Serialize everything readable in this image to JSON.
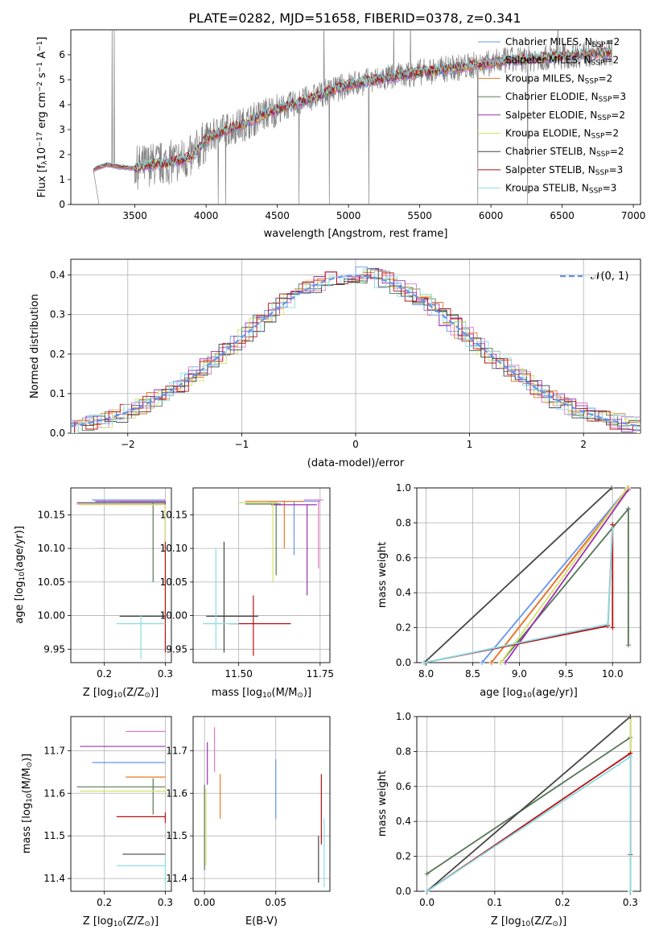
{
  "figure_title": "PLATE=0282, MJD=51658, FIBERID=0378, z=0.341",
  "colors": [
    "#6495ed",
    "#e377c2",
    "#e87722",
    "#557755",
    "#9b30b0",
    "#d4e26a",
    "#444444",
    "#b80f0f",
    "#88dde6"
  ],
  "chart_data": [
    {
      "id": "spectrum",
      "type": "line",
      "title": "PLATE=0282, MJD=51658, FIBERID=0378, z=0.341",
      "xlabel": "wavelength [Angstrom, rest frame]",
      "ylabel": "Flux [f",
      "ylabel_sub": "λ",
      "ylabel_rest": "10",
      "ylabel_exp": "−17",
      "ylabel_tail": " erg cm",
      "ylabel_exp2": "−2",
      "ylabel_tail2": " s",
      "ylabel_exp3": "−1",
      "ylabel_tail3": " A",
      "ylabel_exp4": "−1",
      "ylabel_end": "]",
      "xlim": [
        3050,
        7050
      ],
      "ylim": [
        0,
        7
      ],
      "xticks": [
        3500,
        4000,
        4500,
        5000,
        5500,
        6000,
        6500,
        7000
      ],
      "yticks": [
        0,
        1,
        2,
        3,
        4,
        5,
        6
      ],
      "legend_position": "top-right",
      "data_color": "#808080",
      "model_envelope": {
        "x": [
          3210,
          3300,
          3400,
          3500,
          3600,
          3700,
          3800,
          3900,
          4000,
          4100,
          4200,
          4300,
          4400,
          4500,
          4600,
          4700,
          4800,
          4900,
          5000,
          5100,
          5200,
          5300,
          5400,
          5500,
          5600,
          5700,
          5800,
          5900,
          6000,
          6100,
          6200,
          6300,
          6400,
          6500,
          6600,
          6700,
          6850
        ],
        "y": [
          1.4,
          1.6,
          1.5,
          1.45,
          1.6,
          1.65,
          1.75,
          1.9,
          2.6,
          2.9,
          3.1,
          3.3,
          3.6,
          3.8,
          4.0,
          4.2,
          4.4,
          4.6,
          4.8,
          4.9,
          5.0,
          5.1,
          5.2,
          5.3,
          5.35,
          5.45,
          5.5,
          5.6,
          5.65,
          5.75,
          5.8,
          5.85,
          5.9,
          5.95,
          6.0,
          6.05,
          6.1
        ]
      },
      "series": [
        {
          "name": "Chabrier MILES, N",
          "sub": "SSP",
          "tail": "=2"
        },
        {
          "name": "Salpeter MILES, N",
          "sub": "SSP",
          "tail": "=2"
        },
        {
          "name": "Kroupa MILES, N",
          "sub": "SSP",
          "tail": "=2"
        },
        {
          "name": "Chabrier ELODIE, N",
          "sub": "SSP",
          "tail": "=3"
        },
        {
          "name": "Salpeter ELODIE, N",
          "sub": "SSP",
          "tail": "=2"
        },
        {
          "name": "Kroupa ELODIE, N",
          "sub": "SSP",
          "tail": "=2"
        },
        {
          "name": "Chabrier STELIB, N",
          "sub": "SSP",
          "tail": "=2"
        },
        {
          "name": "Salpeter STELIB, N",
          "sub": "SSP",
          "tail": "=3"
        },
        {
          "name": "Kroupa STELIB, N",
          "sub": "SSP",
          "tail": "=3"
        }
      ]
    },
    {
      "id": "residuals",
      "type": "histogram",
      "xlabel": "(data-model)/error",
      "ylabel": "Normed distribution",
      "xlim": [
        -2.5,
        2.5
      ],
      "ylim": [
        0,
        0.44
      ],
      "xticks": [
        -2,
        -1,
        0,
        1,
        2
      ],
      "yticks": [
        0.0,
        0.1,
        0.2,
        0.3,
        0.4
      ],
      "grid": true,
      "legend_label": "𝒩(0, 1)",
      "legend_position": "top-right",
      "reference_color": "#6495ed",
      "bin_width": 0.1
    },
    {
      "id": "age-vs-Z",
      "type": "errorbar",
      "xlabel": "Z [log",
      "xlabel_sub": "10",
      "xlabel_tail": "(Z/Z",
      "xlabel_sub2": "⊙",
      "xlabel_end": ")]",
      "ylabel": "age  [log",
      "ylabel_sub": "10",
      "ylabel_tail": "(age/yr)]",
      "xlim": [
        0.145,
        0.31
      ],
      "ylim": [
        9.93,
        10.19
      ],
      "xticks": [
        0.2,
        0.3
      ],
      "yticks": [
        9.95,
        10.0,
        10.05,
        10.1,
        10.15
      ],
      "points": [
        {
          "x": 0.3,
          "y": 10.172,
          "xerr": [
            0.18,
            0.3
          ],
          "yerr": [
            10.172,
            10.172
          ]
        },
        {
          "x": 0.3,
          "y": 10.166,
          "xerr": [
            0.155,
            0.3
          ],
          "yerr": [
            10.166,
            10.166
          ]
        },
        {
          "x": 0.3,
          "y": 10.17,
          "xerr": [
            0.225,
            0.3
          ],
          "yerr": [
            10.17,
            10.17
          ]
        },
        {
          "x": 0.28,
          "y": 10.168,
          "xerr": [
            0.155,
            0.3
          ],
          "yerr": [
            10.05,
            10.168
          ]
        },
        {
          "x": 0.3,
          "y": 10.17,
          "xerr": [
            0.185,
            0.3
          ],
          "yerr": [
            10.11,
            10.17
          ]
        },
        {
          "x": 0.3,
          "y": 10.165,
          "xerr": [
            0.16,
            0.3
          ],
          "yerr": [
            10.0,
            10.165
          ]
        },
        {
          "x": 0.265,
          "y": 9.999,
          "xerr": [
            0.225,
            0.3
          ],
          "yerr": [
            9.999,
            9.999
          ]
        },
        {
          "x": 0.3,
          "y": 10.1,
          "xerr": [
            0.3,
            0.3
          ],
          "yerr": [
            9.945,
            10.11
          ]
        },
        {
          "x": 0.26,
          "y": 9.988,
          "xerr": [
            0.22,
            0.3
          ],
          "yerr": [
            9.935,
            10.0
          ]
        }
      ]
    },
    {
      "id": "age-vs-mass",
      "type": "errorbar",
      "xlabel": "mass [log",
      "xlabel_sub": "10",
      "xlabel_tail": "(M/M",
      "xlabel_sub2": "⊙",
      "xlabel_end": ")]",
      "xlim": [
        11.36,
        11.78
      ],
      "ylim": [
        9.93,
        10.19
      ],
      "xticks": [
        11.5,
        11.75
      ],
      "yticks": [
        9.95,
        10.0,
        10.05,
        10.1,
        10.15
      ],
      "points": [
        {
          "x": 11.67,
          "y": 10.17,
          "xerr": [
            11.59,
            11.75
          ],
          "yerr": [
            10.09,
            10.17
          ]
        },
        {
          "x": 11.745,
          "y": 10.172,
          "xerr": [
            11.7,
            11.76
          ],
          "yerr": [
            10.07,
            10.172
          ]
        },
        {
          "x": 11.64,
          "y": 10.17,
          "xerr": [
            11.52,
            11.7
          ],
          "yerr": [
            10.1,
            10.17
          ]
        },
        {
          "x": 11.615,
          "y": 10.166,
          "xerr": [
            11.52,
            11.63
          ],
          "yerr": [
            10.06,
            10.166
          ]
        },
        {
          "x": 11.71,
          "y": 10.165,
          "xerr": [
            11.6,
            11.74
          ],
          "yerr": [
            10.03,
            10.165
          ]
        },
        {
          "x": 11.605,
          "y": 10.168,
          "xerr": [
            11.5,
            11.62
          ],
          "yerr": [
            10.05,
            10.168
          ]
        },
        {
          "x": 11.455,
          "y": 9.999,
          "xerr": [
            11.4,
            11.56
          ],
          "yerr": [
            9.945,
            10.11
          ]
        },
        {
          "x": 11.545,
          "y": 9.988,
          "xerr": [
            11.47,
            11.66
          ],
          "yerr": [
            9.94,
            10.03
          ]
        },
        {
          "x": 11.43,
          "y": 9.988,
          "xerr": [
            11.39,
            11.5
          ],
          "yerr": [
            9.95,
            10.1
          ]
        }
      ]
    },
    {
      "id": "massweight-vs-age",
      "type": "line",
      "xlabel": "age  [log",
      "xlabel_sub": "10",
      "xlabel_tail": "(age/yr)]",
      "ylabel": "mass weight",
      "xlim": [
        7.9,
        10.3
      ],
      "ylim": [
        0,
        1
      ],
      "xticks": [
        8.0,
        8.5,
        9.0,
        9.5,
        10.0
      ],
      "yticks": [
        0.0,
        0.2,
        0.4,
        0.6,
        0.8,
        1.0
      ],
      "grid": true,
      "series": [
        {
          "x": [
            8.6,
            10.15
          ],
          "y": [
            0.0,
            0.99
          ]
        },
        {
          "x": [
            8.7,
            10.16
          ],
          "y": [
            0.0,
            0.99
          ]
        },
        {
          "x": [
            8.7,
            10.17
          ],
          "y": [
            0.0,
            1.0
          ]
        },
        {
          "x": [
            8.8,
            10.17,
            10.17
          ],
          "y": [
            0.0,
            0.88,
            0.1
          ]
        },
        {
          "x": [
            8.85,
            10.17
          ],
          "y": [
            0.0,
            0.99
          ]
        },
        {
          "x": [
            8.8,
            10.16
          ],
          "y": [
            0.0,
            1.0
          ]
        },
        {
          "x": [
            7.98,
            9.99
          ],
          "y": [
            0.0,
            1.0
          ]
        },
        {
          "x": [
            7.98,
            9.95,
            10.0,
            10.0
          ],
          "y": [
            0.0,
            0.21,
            0.79,
            0.2
          ]
        },
        {
          "x": [
            7.98,
            9.95,
            10.0
          ],
          "y": [
            0.0,
            0.22,
            0.77
          ]
        }
      ]
    },
    {
      "id": "mass-vs-Z",
      "type": "errorbar",
      "ylabel": "mass [log",
      "ylabel_sub": "10",
      "ylabel_tail": "(M/M",
      "ylabel_sub2": "⊙",
      "ylabel_end": ")]",
      "xlabel": "Z [log",
      "xlabel_sub": "10",
      "xlabel_tail": "(Z/Z",
      "xlabel_sub2": "⊙",
      "xlabel_end": ")]",
      "xlim": [
        0.145,
        0.31
      ],
      "ylim": [
        11.37,
        11.78
      ],
      "xticks": [
        0.2,
        0.3
      ],
      "yticks": [
        11.4,
        11.5,
        11.6,
        11.7
      ],
      "points": [
        {
          "x": 0.3,
          "y": 11.672,
          "xerr": [
            0.18,
            0.3
          ],
          "yerr": [
            11.672,
            11.672
          ]
        },
        {
          "x": 0.3,
          "y": 11.745,
          "xerr": [
            0.235,
            0.3
          ],
          "yerr": [
            11.745,
            11.745
          ]
        },
        {
          "x": 0.3,
          "y": 11.638,
          "xerr": [
            0.235,
            0.3
          ],
          "yerr": [
            11.638,
            11.638
          ]
        },
        {
          "x": 0.28,
          "y": 11.615,
          "xerr": [
            0.155,
            0.3
          ],
          "yerr": [
            11.55,
            11.635
          ]
        },
        {
          "x": 0.3,
          "y": 11.71,
          "xerr": [
            0.16,
            0.3
          ],
          "yerr": [
            11.71,
            11.71
          ]
        },
        {
          "x": 0.3,
          "y": 11.605,
          "xerr": [
            0.16,
            0.3
          ],
          "yerr": [
            11.6,
            11.61
          ]
        },
        {
          "x": 0.28,
          "y": 11.457,
          "xerr": [
            0.23,
            0.3
          ],
          "yerr": [
            11.457,
            11.457
          ]
        },
        {
          "x": 0.3,
          "y": 11.545,
          "xerr": [
            0.22,
            0.3
          ],
          "yerr": [
            11.53,
            11.555
          ]
        },
        {
          "x": 0.3,
          "y": 11.43,
          "xerr": [
            0.22,
            0.3
          ],
          "yerr": [
            11.38,
            11.45
          ]
        }
      ]
    },
    {
      "id": "mass-vs-EBV",
      "type": "errorbar",
      "xlabel": "E(B-V)",
      "xlim": [
        -0.008,
        0.088
      ],
      "ylim": [
        11.37,
        11.78
      ],
      "xticks": [
        0.0,
        0.05
      ],
      "yticks": [
        11.4,
        11.5,
        11.6,
        11.7
      ],
      "points": [
        {
          "x": 0.05,
          "y": 11.61,
          "yerr": [
            11.54,
            11.68
          ]
        },
        {
          "x": 0.007,
          "y": 11.7,
          "yerr": [
            11.65,
            11.755
          ]
        },
        {
          "x": 0.011,
          "y": 11.6,
          "yerr": [
            11.54,
            11.645
          ]
        },
        {
          "x": 0.0,
          "y": 11.62,
          "yerr": [
            11.42,
            11.62
          ]
        },
        {
          "x": 0.002,
          "y": 11.67,
          "yerr": [
            11.62,
            11.72
          ]
        },
        {
          "x": 0.001,
          "y": 11.52,
          "yerr": [
            11.43,
            11.61
          ]
        },
        {
          "x": 0.08,
          "y": 11.45,
          "yerr": [
            11.39,
            11.5
          ]
        },
        {
          "x": 0.082,
          "y": 11.58,
          "yerr": [
            11.48,
            11.645
          ]
        },
        {
          "x": 0.084,
          "y": 11.46,
          "yerr": [
            11.38,
            11.54
          ]
        }
      ]
    },
    {
      "id": "massweight-vs-Z",
      "type": "line",
      "xlabel": "Z [log",
      "xlabel_sub": "10",
      "xlabel_tail": "(Z/Z",
      "xlabel_sub2": "⊙",
      "xlabel_end": ")]",
      "ylabel": "mass weight",
      "xlim": [
        -0.015,
        0.315
      ],
      "ylim": [
        0,
        1
      ],
      "xticks": [
        0.0,
        0.1,
        0.2,
        0.3
      ],
      "yticks": [
        0.0,
        0.2,
        0.4,
        0.6,
        0.8,
        1.0
      ],
      "grid": true,
      "series": [
        {
          "x": [
            0.3,
            0.3
          ],
          "y": [
            0.0,
            1.0
          ]
        },
        {
          "x": [
            0.3,
            0.3
          ],
          "y": [
            0.0,
            1.0
          ]
        },
        {
          "x": [
            0.3,
            0.3
          ],
          "y": [
            0.0,
            1.0
          ]
        },
        {
          "x": [
            0.0,
            0.3,
            0.3
          ],
          "y": [
            0.1,
            0.88,
            0.0
          ]
        },
        {
          "x": [
            0.3,
            0.3
          ],
          "y": [
            0.0,
            1.0
          ]
        },
        {
          "x": [
            0.3,
            0.3
          ],
          "y": [
            0.0,
            0.99
          ]
        },
        {
          "x": [
            0.0,
            0.3
          ],
          "y": [
            0.0,
            1.0
          ]
        },
        {
          "x": [
            0.0,
            0.3,
            0.3
          ],
          "y": [
            0.0,
            0.79,
            0.21
          ]
        },
        {
          "x": [
            0.0,
            0.3,
            0.3
          ],
          "y": [
            0.0,
            0.77,
            0.0
          ]
        }
      ]
    }
  ]
}
